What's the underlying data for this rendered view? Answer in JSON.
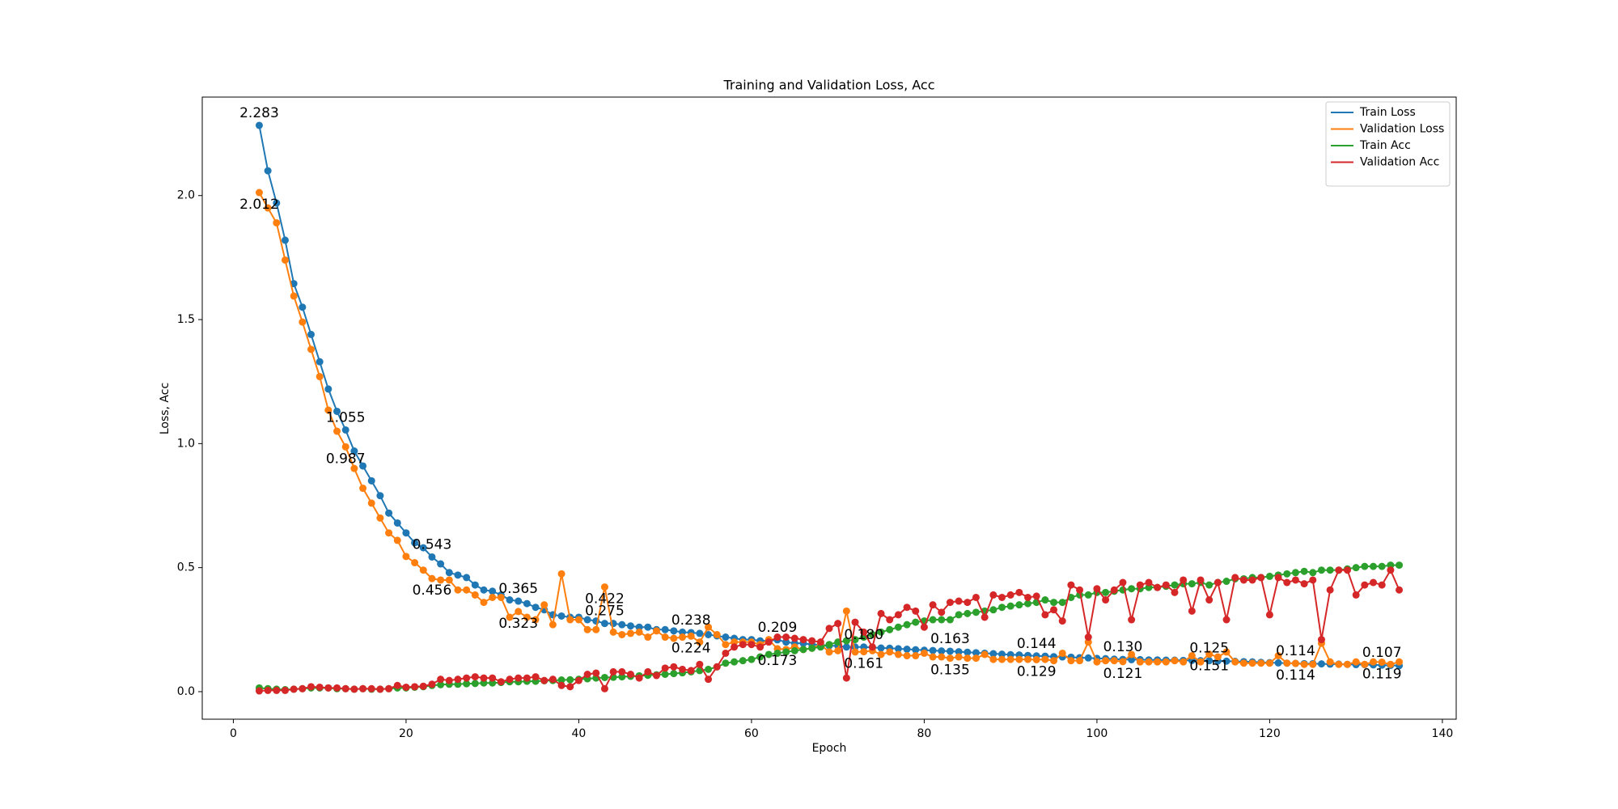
{
  "chart_data": {
    "type": "line",
    "title": "Training and Validation Loss, Acc",
    "xlabel": "Epoch",
    "ylabel": "Loss, Acc",
    "x": [
      3,
      4,
      5,
      6,
      7,
      8,
      9,
      10,
      11,
      12,
      13,
      14,
      15,
      16,
      17,
      18,
      19,
      20,
      21,
      22,
      23,
      24,
      25,
      26,
      27,
      28,
      29,
      30,
      31,
      32,
      33,
      34,
      35,
      36,
      37,
      38,
      39,
      40,
      41,
      42,
      43,
      44,
      45,
      46,
      47,
      48,
      49,
      50,
      51,
      52,
      53,
      54,
      55,
      56,
      57,
      58,
      59,
      60,
      61,
      62,
      63,
      64,
      65,
      66,
      67,
      68,
      69,
      70,
      71,
      72,
      73,
      74,
      75,
      76,
      77,
      78,
      79,
      80,
      81,
      82,
      83,
      84,
      85,
      86,
      87,
      88,
      89,
      90,
      91,
      92,
      93,
      94,
      95,
      96,
      97,
      98,
      99,
      100,
      101,
      102,
      103,
      104,
      105,
      106,
      107,
      108,
      109,
      110,
      111,
      112,
      113,
      114,
      115,
      116,
      117,
      118,
      119,
      120,
      121,
      122,
      123,
      124,
      125,
      126,
      127,
      128,
      129,
      130,
      131,
      132,
      133,
      134,
      135
    ],
    "series": [
      {
        "name": "Train Loss",
        "color": "#1f77b4",
        "values": [
          2.283,
          2.1,
          1.97,
          1.82,
          1.645,
          1.55,
          1.44,
          1.33,
          1.22,
          1.13,
          1.055,
          0.97,
          0.91,
          0.85,
          0.79,
          0.72,
          0.68,
          0.64,
          0.6,
          0.58,
          0.543,
          0.515,
          0.48,
          0.47,
          0.46,
          0.43,
          0.41,
          0.405,
          0.39,
          0.37,
          0.365,
          0.355,
          0.34,
          0.33,
          0.31,
          0.305,
          0.3,
          0.3,
          0.29,
          0.285,
          0.275,
          0.275,
          0.27,
          0.265,
          0.26,
          0.26,
          0.25,
          0.25,
          0.245,
          0.24,
          0.238,
          0.235,
          0.23,
          0.225,
          0.22,
          0.215,
          0.21,
          0.21,
          0.205,
          0.205,
          0.209,
          0.2,
          0.195,
          0.195,
          0.19,
          0.19,
          0.185,
          0.185,
          0.18,
          0.18,
          0.18,
          0.178,
          0.176,
          0.175,
          0.173,
          0.171,
          0.169,
          0.167,
          0.166,
          0.164,
          0.163,
          0.161,
          0.159,
          0.157,
          0.155,
          0.153,
          0.151,
          0.149,
          0.148,
          0.146,
          0.144,
          0.143,
          0.141,
          0.14,
          0.139,
          0.137,
          0.136,
          0.134,
          0.133,
          0.131,
          0.13,
          0.129,
          0.129,
          0.128,
          0.128,
          0.127,
          0.127,
          0.126,
          0.126,
          0.125,
          0.125,
          0.124,
          0.123,
          0.122,
          0.121,
          0.12,
          0.118,
          0.117,
          0.116,
          0.115,
          0.114,
          0.113,
          0.113,
          0.112,
          0.111,
          0.111,
          0.11,
          0.109,
          0.109,
          0.108,
          0.107,
          0.106,
          0.105
        ]
      },
      {
        "name": "Validation Loss",
        "color": "#ff7f0e",
        "values": [
          2.012,
          1.95,
          1.89,
          1.74,
          1.595,
          1.49,
          1.38,
          1.27,
          1.135,
          1.05,
          0.987,
          0.9,
          0.82,
          0.76,
          0.7,
          0.64,
          0.61,
          0.545,
          0.52,
          0.49,
          0.456,
          0.45,
          0.45,
          0.41,
          0.41,
          0.39,
          0.36,
          0.38,
          0.38,
          0.3,
          0.323,
          0.3,
          0.29,
          0.35,
          0.27,
          0.475,
          0.29,
          0.29,
          0.25,
          0.25,
          0.422,
          0.24,
          0.23,
          0.235,
          0.24,
          0.22,
          0.245,
          0.22,
          0.215,
          0.22,
          0.224,
          0.2,
          0.26,
          0.23,
          0.19,
          0.2,
          0.2,
          0.2,
          0.19,
          0.21,
          0.173,
          0.17,
          0.18,
          0.17,
          0.175,
          0.19,
          0.16,
          0.165,
          0.325,
          0.16,
          0.161,
          0.165,
          0.15,
          0.16,
          0.15,
          0.145,
          0.145,
          0.155,
          0.14,
          0.14,
          0.135,
          0.14,
          0.135,
          0.135,
          0.15,
          0.13,
          0.13,
          0.13,
          0.13,
          0.13,
          0.129,
          0.13,
          0.125,
          0.155,
          0.125,
          0.125,
          0.2,
          0.12,
          0.125,
          0.125,
          0.121,
          0.15,
          0.12,
          0.12,
          0.12,
          0.12,
          0.125,
          0.12,
          0.145,
          0.12,
          0.151,
          0.14,
          0.16,
          0.12,
          0.115,
          0.115,
          0.115,
          0.115,
          0.145,
          0.115,
          0.114,
          0.11,
          0.11,
          0.195,
          0.12,
          0.11,
          0.11,
          0.12,
          0.11,
          0.12,
          0.119,
          0.11,
          0.12
        ]
      },
      {
        "name": "Train Acc",
        "color": "#2ca02c",
        "values": [
          0.015,
          0.012,
          0.01,
          0.008,
          0.01,
          0.012,
          0.015,
          0.015,
          0.015,
          0.012,
          0.012,
          0.01,
          0.012,
          0.01,
          0.01,
          0.012,
          0.015,
          0.015,
          0.018,
          0.02,
          0.025,
          0.028,
          0.03,
          0.03,
          0.032,
          0.033,
          0.035,
          0.035,
          0.037,
          0.04,
          0.04,
          0.042,
          0.042,
          0.044,
          0.045,
          0.047,
          0.048,
          0.05,
          0.052,
          0.055,
          0.057,
          0.058,
          0.06,
          0.062,
          0.064,
          0.066,
          0.068,
          0.07,
          0.073,
          0.076,
          0.08,
          0.085,
          0.09,
          0.1,
          0.115,
          0.12,
          0.125,
          0.13,
          0.14,
          0.15,
          0.155,
          0.16,
          0.165,
          0.17,
          0.175,
          0.18,
          0.19,
          0.2,
          0.205,
          0.21,
          0.22,
          0.23,
          0.24,
          0.25,
          0.26,
          0.27,
          0.28,
          0.285,
          0.29,
          0.29,
          0.29,
          0.31,
          0.315,
          0.32,
          0.325,
          0.33,
          0.34,
          0.345,
          0.35,
          0.355,
          0.36,
          0.37,
          0.36,
          0.36,
          0.38,
          0.39,
          0.39,
          0.4,
          0.4,
          0.405,
          0.41,
          0.415,
          0.415,
          0.42,
          0.42,
          0.425,
          0.43,
          0.435,
          0.435,
          0.44,
          0.43,
          0.44,
          0.445,
          0.455,
          0.455,
          0.46,
          0.46,
          0.465,
          0.47,
          0.475,
          0.48,
          0.485,
          0.48,
          0.49,
          0.49,
          0.49,
          0.495,
          0.5,
          0.505,
          0.505,
          0.505,
          0.51,
          0.51
        ]
      },
      {
        "name": "Validation Acc",
        "color": "#d62728",
        "values": [
          0.003,
          0.005,
          0.005,
          0.005,
          0.01,
          0.012,
          0.02,
          0.018,
          0.015,
          0.015,
          0.012,
          0.01,
          0.012,
          0.012,
          0.01,
          0.012,
          0.025,
          0.018,
          0.02,
          0.022,
          0.03,
          0.05,
          0.045,
          0.05,
          0.055,
          0.06,
          0.055,
          0.055,
          0.04,
          0.05,
          0.055,
          0.055,
          0.06,
          0.045,
          0.05,
          0.025,
          0.02,
          0.045,
          0.07,
          0.075,
          0.012,
          0.08,
          0.08,
          0.07,
          0.055,
          0.08,
          0.065,
          0.095,
          0.1,
          0.09,
          0.085,
          0.11,
          0.05,
          0.1,
          0.155,
          0.18,
          0.19,
          0.19,
          0.18,
          0.2,
          0.22,
          0.22,
          0.215,
          0.21,
          0.205,
          0.2,
          0.255,
          0.275,
          0.055,
          0.28,
          0.24,
          0.18,
          0.315,
          0.29,
          0.31,
          0.34,
          0.325,
          0.26,
          0.35,
          0.32,
          0.36,
          0.365,
          0.36,
          0.38,
          0.3,
          0.39,
          0.38,
          0.39,
          0.4,
          0.38,
          0.385,
          0.31,
          0.33,
          0.285,
          0.43,
          0.41,
          0.22,
          0.415,
          0.37,
          0.41,
          0.44,
          0.29,
          0.43,
          0.44,
          0.42,
          0.43,
          0.4,
          0.45,
          0.325,
          0.45,
          0.37,
          0.44,
          0.29,
          0.46,
          0.45,
          0.45,
          0.46,
          0.31,
          0.46,
          0.44,
          0.45,
          0.435,
          0.45,
          0.21,
          0.41,
          0.49,
          0.49,
          0.39,
          0.43,
          0.44,
          0.43,
          0.49,
          0.41
        ]
      }
    ],
    "annotations": [
      {
        "text": "2.283",
        "x": 3,
        "y": 2.283,
        "position": "above"
      },
      {
        "text": "2.012",
        "x": 3,
        "y": 2.012,
        "position": "below"
      },
      {
        "text": "1.055",
        "x": 13,
        "y": 1.055,
        "position": "above"
      },
      {
        "text": "0.987",
        "x": 13,
        "y": 0.987,
        "position": "below"
      },
      {
        "text": "0.543",
        "x": 23,
        "y": 0.543,
        "position": "above"
      },
      {
        "text": "0.456",
        "x": 23,
        "y": 0.456,
        "position": "below"
      },
      {
        "text": "0.365",
        "x": 33,
        "y": 0.365,
        "position": "above"
      },
      {
        "text": "0.323",
        "x": 33,
        "y": 0.323,
        "position": "below"
      },
      {
        "text": "0.275",
        "x": 43,
        "y": 0.275,
        "position": "above"
      },
      {
        "text": "0.422",
        "x": 43,
        "y": 0.422,
        "position": "below"
      },
      {
        "text": "0.238",
        "x": 53,
        "y": 0.238,
        "position": "above"
      },
      {
        "text": "0.224",
        "x": 53,
        "y": 0.224,
        "position": "below"
      },
      {
        "text": "0.209",
        "x": 63,
        "y": 0.209,
        "position": "above"
      },
      {
        "text": "0.173",
        "x": 63,
        "y": 0.173,
        "position": "below"
      },
      {
        "text": "0.180",
        "x": 73,
        "y": 0.18,
        "position": "above"
      },
      {
        "text": "0.161",
        "x": 73,
        "y": 0.161,
        "position": "below"
      },
      {
        "text": "0.163",
        "x": 83,
        "y": 0.163,
        "position": "above"
      },
      {
        "text": "0.135",
        "x": 83,
        "y": 0.135,
        "position": "below"
      },
      {
        "text": "0.144",
        "x": 93,
        "y": 0.144,
        "position": "above"
      },
      {
        "text": "0.129",
        "x": 93,
        "y": 0.129,
        "position": "below"
      },
      {
        "text": "0.130",
        "x": 103,
        "y": 0.13,
        "position": "above"
      },
      {
        "text": "0.121",
        "x": 103,
        "y": 0.121,
        "position": "below"
      },
      {
        "text": "0.125",
        "x": 113,
        "y": 0.125,
        "position": "above"
      },
      {
        "text": "0.151",
        "x": 113,
        "y": 0.151,
        "position": "below"
      },
      {
        "text": "0.114",
        "x": 123,
        "y": 0.114,
        "position": "above"
      },
      {
        "text": "0.114",
        "x": 123,
        "y": 0.114,
        "position": "below"
      },
      {
        "text": "0.107",
        "x": 133,
        "y": 0.107,
        "position": "above"
      },
      {
        "text": "0.119",
        "x": 133,
        "y": 0.119,
        "position": "below"
      }
    ],
    "xlim": [
      -3.6,
      141.6
    ],
    "ylim": [
      -0.111,
      2.397
    ],
    "xticks": [
      0,
      20,
      40,
      60,
      80,
      100,
      120,
      140
    ],
    "yticks": [
      {
        "value": 0,
        "label": "0.0"
      },
      0.5,
      {
        "value": 1,
        "label": "1.0"
      },
      1.5,
      {
        "value": 2,
        "label": "2.0"
      }
    ],
    "grid": false,
    "legend": "upper right"
  }
}
